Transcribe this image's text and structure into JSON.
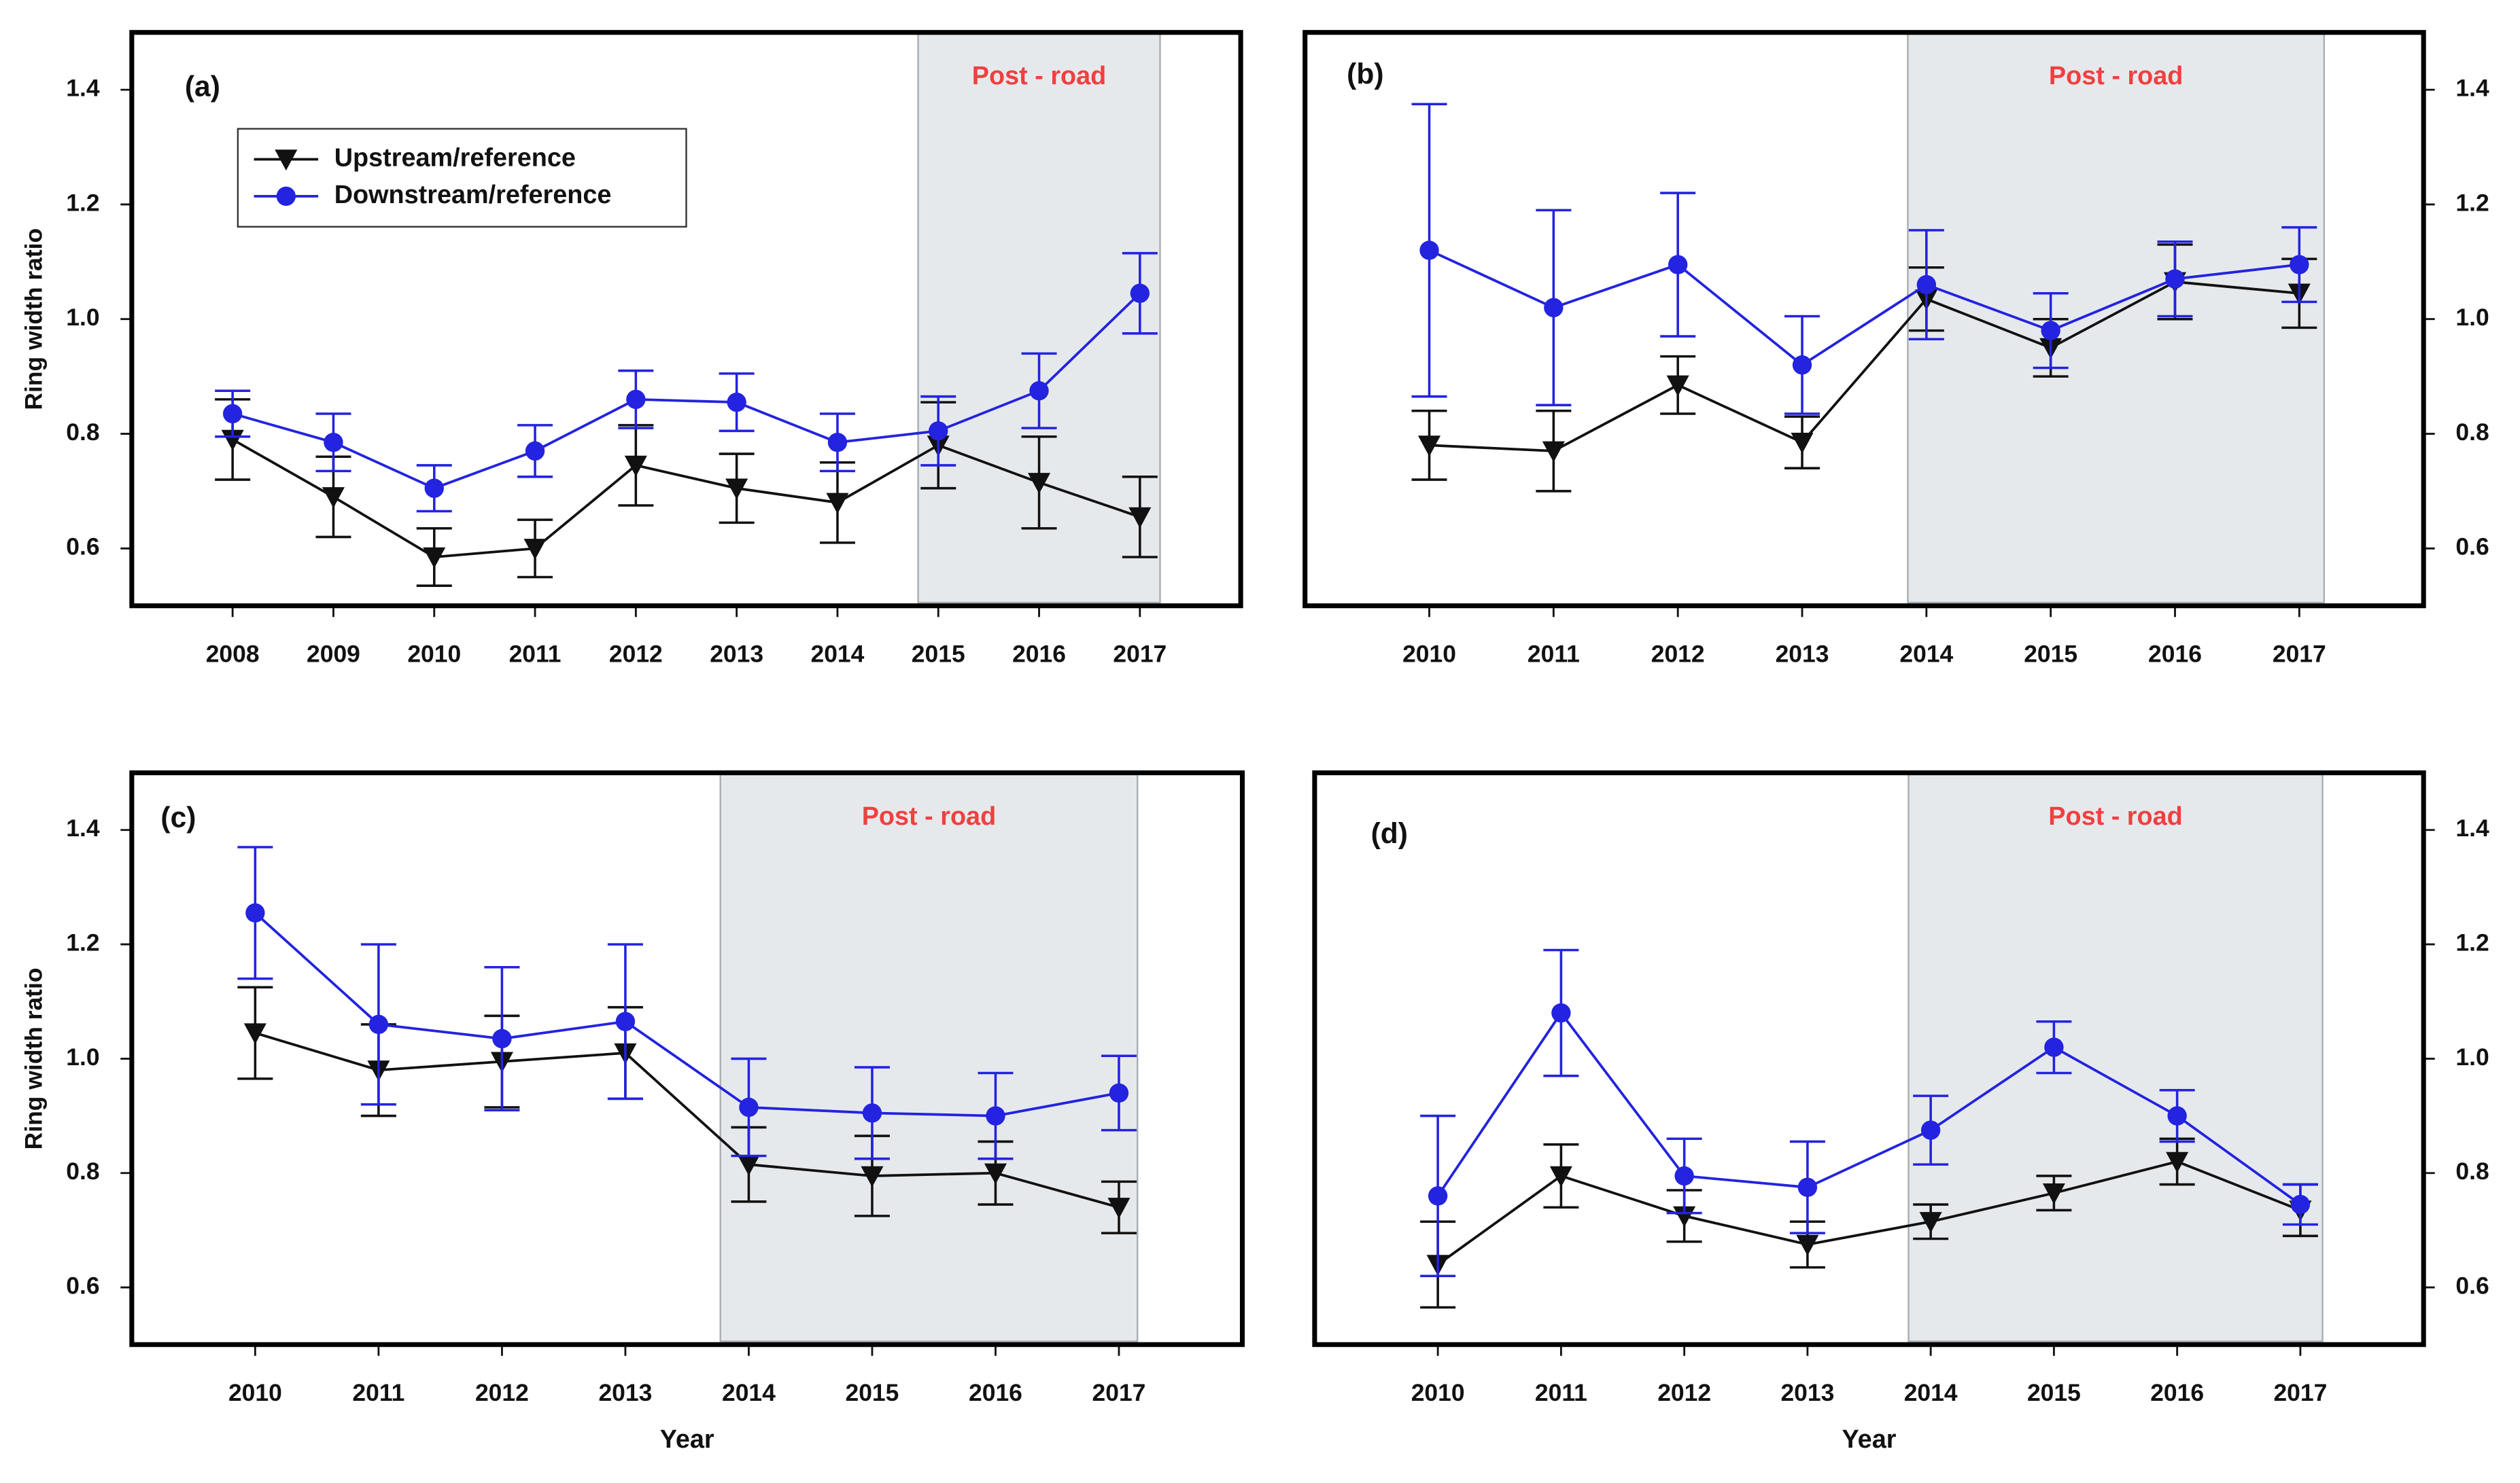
{
  "chart_data": [
    {
      "type": "line",
      "title": "(a)",
      "ylabel": "Ring width ratio",
      "yaxis_side": "left",
      "legend": true,
      "x": [
        2008,
        2009,
        2010,
        2011,
        2012,
        2013,
        2014,
        2015,
        2016,
        2017
      ],
      "xlim": [
        2007,
        2018
      ],
      "xticks": [
        2008,
        2009,
        2010,
        2011,
        2012,
        2013,
        2014,
        2015,
        2016,
        2017
      ],
      "ylim": [
        0.5,
        1.5
      ],
      "yticks": [
        0.6,
        0.8,
        {
          "value": 1.0,
          "label": "1.0"
        },
        1.2,
        1.4
      ],
      "shade": [
        2014.8,
        2017.2
      ],
      "shade_label": "Post - road",
      "series": [
        {
          "name": "Upstream/reference",
          "color": "#111111",
          "marker": "triangle-down",
          "values": [
            0.79,
            0.69,
            0.585,
            0.6,
            0.745,
            0.705,
            0.68,
            0.78,
            0.715,
            0.655
          ],
          "errors": [
            0.07,
            0.07,
            0.05,
            0.05,
            0.07,
            0.06,
            0.07,
            0.075,
            0.08,
            0.07
          ]
        },
        {
          "name": "Downstream/reference",
          "color": "#2323e0",
          "marker": "circle",
          "values": [
            0.835,
            0.785,
            0.705,
            0.77,
            0.86,
            0.855,
            0.785,
            0.805,
            0.875,
            1.045
          ],
          "errors": [
            0.04,
            0.05,
            0.04,
            0.045,
            0.05,
            0.05,
            0.05,
            0.06,
            0.065,
            0.07
          ]
        }
      ]
    },
    {
      "type": "line",
      "title": "(b)",
      "yaxis_side": "right",
      "x": [
        2010,
        2011,
        2012,
        2013,
        2014,
        2015,
        2016,
        2017
      ],
      "xlim": [
        2009,
        2018
      ],
      "xticks": [
        2010,
        2011,
        2012,
        2013,
        2014,
        2015,
        2016,
        2017
      ],
      "ylim": [
        0.5,
        1.5
      ],
      "yticks": [
        0.6,
        0.8,
        {
          "value": 1.0,
          "label": "1.0"
        },
        1.2,
        1.4
      ],
      "shade": [
        2013.85,
        2017.2
      ],
      "shade_label": "Post - road",
      "series": [
        {
          "color": "#111111",
          "marker": "triangle-down",
          "values": [
            0.78,
            0.77,
            0.885,
            0.785,
            1.035,
            0.95,
            1.065,
            1.045
          ],
          "errors": [
            0.06,
            0.07,
            0.05,
            0.045,
            0.055,
            0.05,
            0.065,
            0.06
          ]
        },
        {
          "color": "#2323e0",
          "marker": "circle",
          "values": [
            1.12,
            1.02,
            1.095,
            0.92,
            1.06,
            0.98,
            1.07,
            1.095
          ],
          "errors": [
            0.255,
            0.17,
            0.125,
            0.085,
            0.095,
            0.065,
            0.065,
            0.065
          ]
        }
      ]
    },
    {
      "type": "line",
      "title": "(c)",
      "ylabel": "Ring width ratio",
      "xlabel": "Year",
      "yaxis_side": "left",
      "x": [
        2010,
        2011,
        2012,
        2013,
        2014,
        2015,
        2016,
        2017
      ],
      "xlim": [
        2009,
        2018
      ],
      "xticks": [
        2010,
        2011,
        2012,
        2013,
        2014,
        2015,
        2016,
        2017
      ],
      "ylim": [
        0.5,
        1.5
      ],
      "yticks": [
        0.6,
        0.8,
        {
          "value": 1.0,
          "label": "1.0"
        },
        1.2,
        1.4
      ],
      "shade": [
        2013.77,
        2017.15
      ],
      "shade_label": "Post - road",
      "series": [
        {
          "color": "#111111",
          "marker": "triangle-down",
          "values": [
            1.045,
            0.98,
            0.995,
            1.01,
            0.815,
            0.795,
            0.8,
            0.74
          ],
          "errors": [
            0.08,
            0.08,
            0.08,
            0.08,
            0.065,
            0.07,
            0.055,
            0.045
          ]
        },
        {
          "color": "#2323e0",
          "marker": "circle",
          "values": [
            1.255,
            1.06,
            1.035,
            1.065,
            0.915,
            0.905,
            0.9,
            0.94
          ],
          "errors": [
            0.115,
            0.14,
            0.125,
            0.135,
            0.085,
            0.08,
            0.075,
            0.065
          ]
        }
      ]
    },
    {
      "type": "line",
      "title": "(d)",
      "xlabel": "Year",
      "yaxis_side": "right",
      "x": [
        2010,
        2011,
        2012,
        2013,
        2014,
        2015,
        2016,
        2017
      ],
      "xlim": [
        2009,
        2018
      ],
      "xticks": [
        2010,
        2011,
        2012,
        2013,
        2014,
        2015,
        2016,
        2017
      ],
      "ylim": [
        0.5,
        1.5
      ],
      "yticks": [
        0.6,
        0.8,
        {
          "value": 1.0,
          "label": "1.0"
        },
        1.2,
        1.4
      ],
      "shade": [
        2013.82,
        2017.18
      ],
      "shade_label": "Post - road",
      "series": [
        {
          "color": "#111111",
          "marker": "triangle-down",
          "values": [
            0.64,
            0.795,
            0.725,
            0.675,
            0.715,
            0.765,
            0.82,
            0.735
          ],
          "errors": [
            0.075,
            0.055,
            0.045,
            0.04,
            0.03,
            0.03,
            0.04,
            0.045
          ]
        },
        {
          "color": "#2323e0",
          "marker": "circle",
          "values": [
            0.76,
            1.08,
            0.795,
            0.775,
            0.875,
            1.02,
            0.9,
            0.745
          ],
          "errors": [
            0.14,
            0.11,
            0.065,
            0.08,
            0.06,
            0.045,
            0.045,
            0.035
          ]
        }
      ]
    }
  ]
}
